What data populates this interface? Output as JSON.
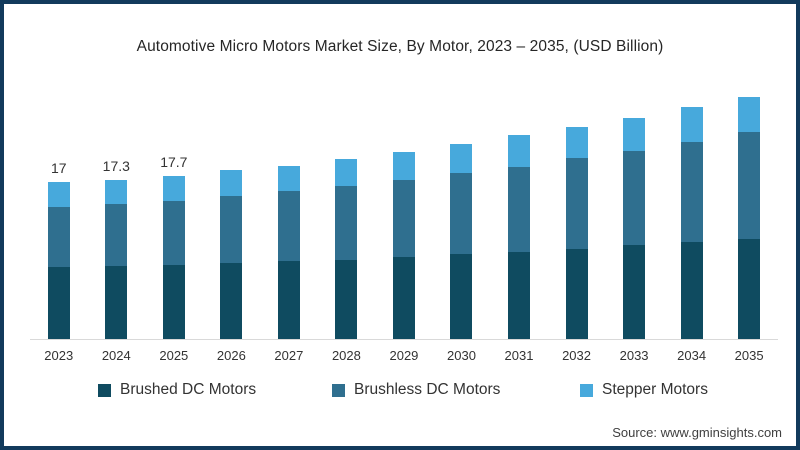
{
  "chart_data": {
    "type": "bar",
    "stacked": true,
    "title": "Automotive Micro Motors Market Size, By Motor, 2023 – 2035, (USD Billion)",
    "unit": "USD Billion",
    "categories": [
      "2023",
      "2024",
      "2025",
      "2026",
      "2027",
      "2028",
      "2029",
      "2030",
      "2031",
      "2032",
      "2033",
      "2034",
      "2035"
    ],
    "series": [
      {
        "name": "Brushed DC Motors",
        "color": "#0F4B60",
        "values": [
          7.8,
          7.9,
          8.0,
          8.2,
          8.5,
          8.6,
          8.9,
          9.2,
          9.4,
          9.8,
          10.2,
          10.5,
          10.9
        ]
      },
      {
        "name": "Brushless DC Motors",
        "color": "#2F6F8F",
        "values": [
          6.5,
          6.7,
          7.0,
          7.3,
          7.5,
          8.0,
          8.4,
          8.8,
          9.3,
          9.8,
          10.2,
          10.9,
          11.6
        ]
      },
      {
        "name": "Stepper Motors",
        "color": "#47A9DC",
        "values": [
          2.7,
          2.7,
          2.7,
          2.8,
          2.8,
          2.9,
          3.0,
          3.2,
          3.4,
          3.4,
          3.6,
          3.8,
          3.8
        ]
      }
    ],
    "totals": [
      17,
      17.3,
      17.7,
      18.3,
      18.8,
      19.5,
      20.3,
      21.2,
      22.1,
      23.0,
      24.0,
      25.2,
      26.3
    ],
    "bar_labels": [
      "17",
      "17.3",
      "17.7",
      "",
      "",
      "",
      "",
      "",
      "",
      "",
      "",
      "",
      ""
    ],
    "ylim": [
      0,
      27.4
    ],
    "grid": false,
    "y_axis_shown": false,
    "legend_position": "bottom",
    "frame_color": "#123A5C",
    "axis_line_color": "#D9D9D9"
  },
  "source": {
    "label": "Source: www.gminsights.com"
  }
}
